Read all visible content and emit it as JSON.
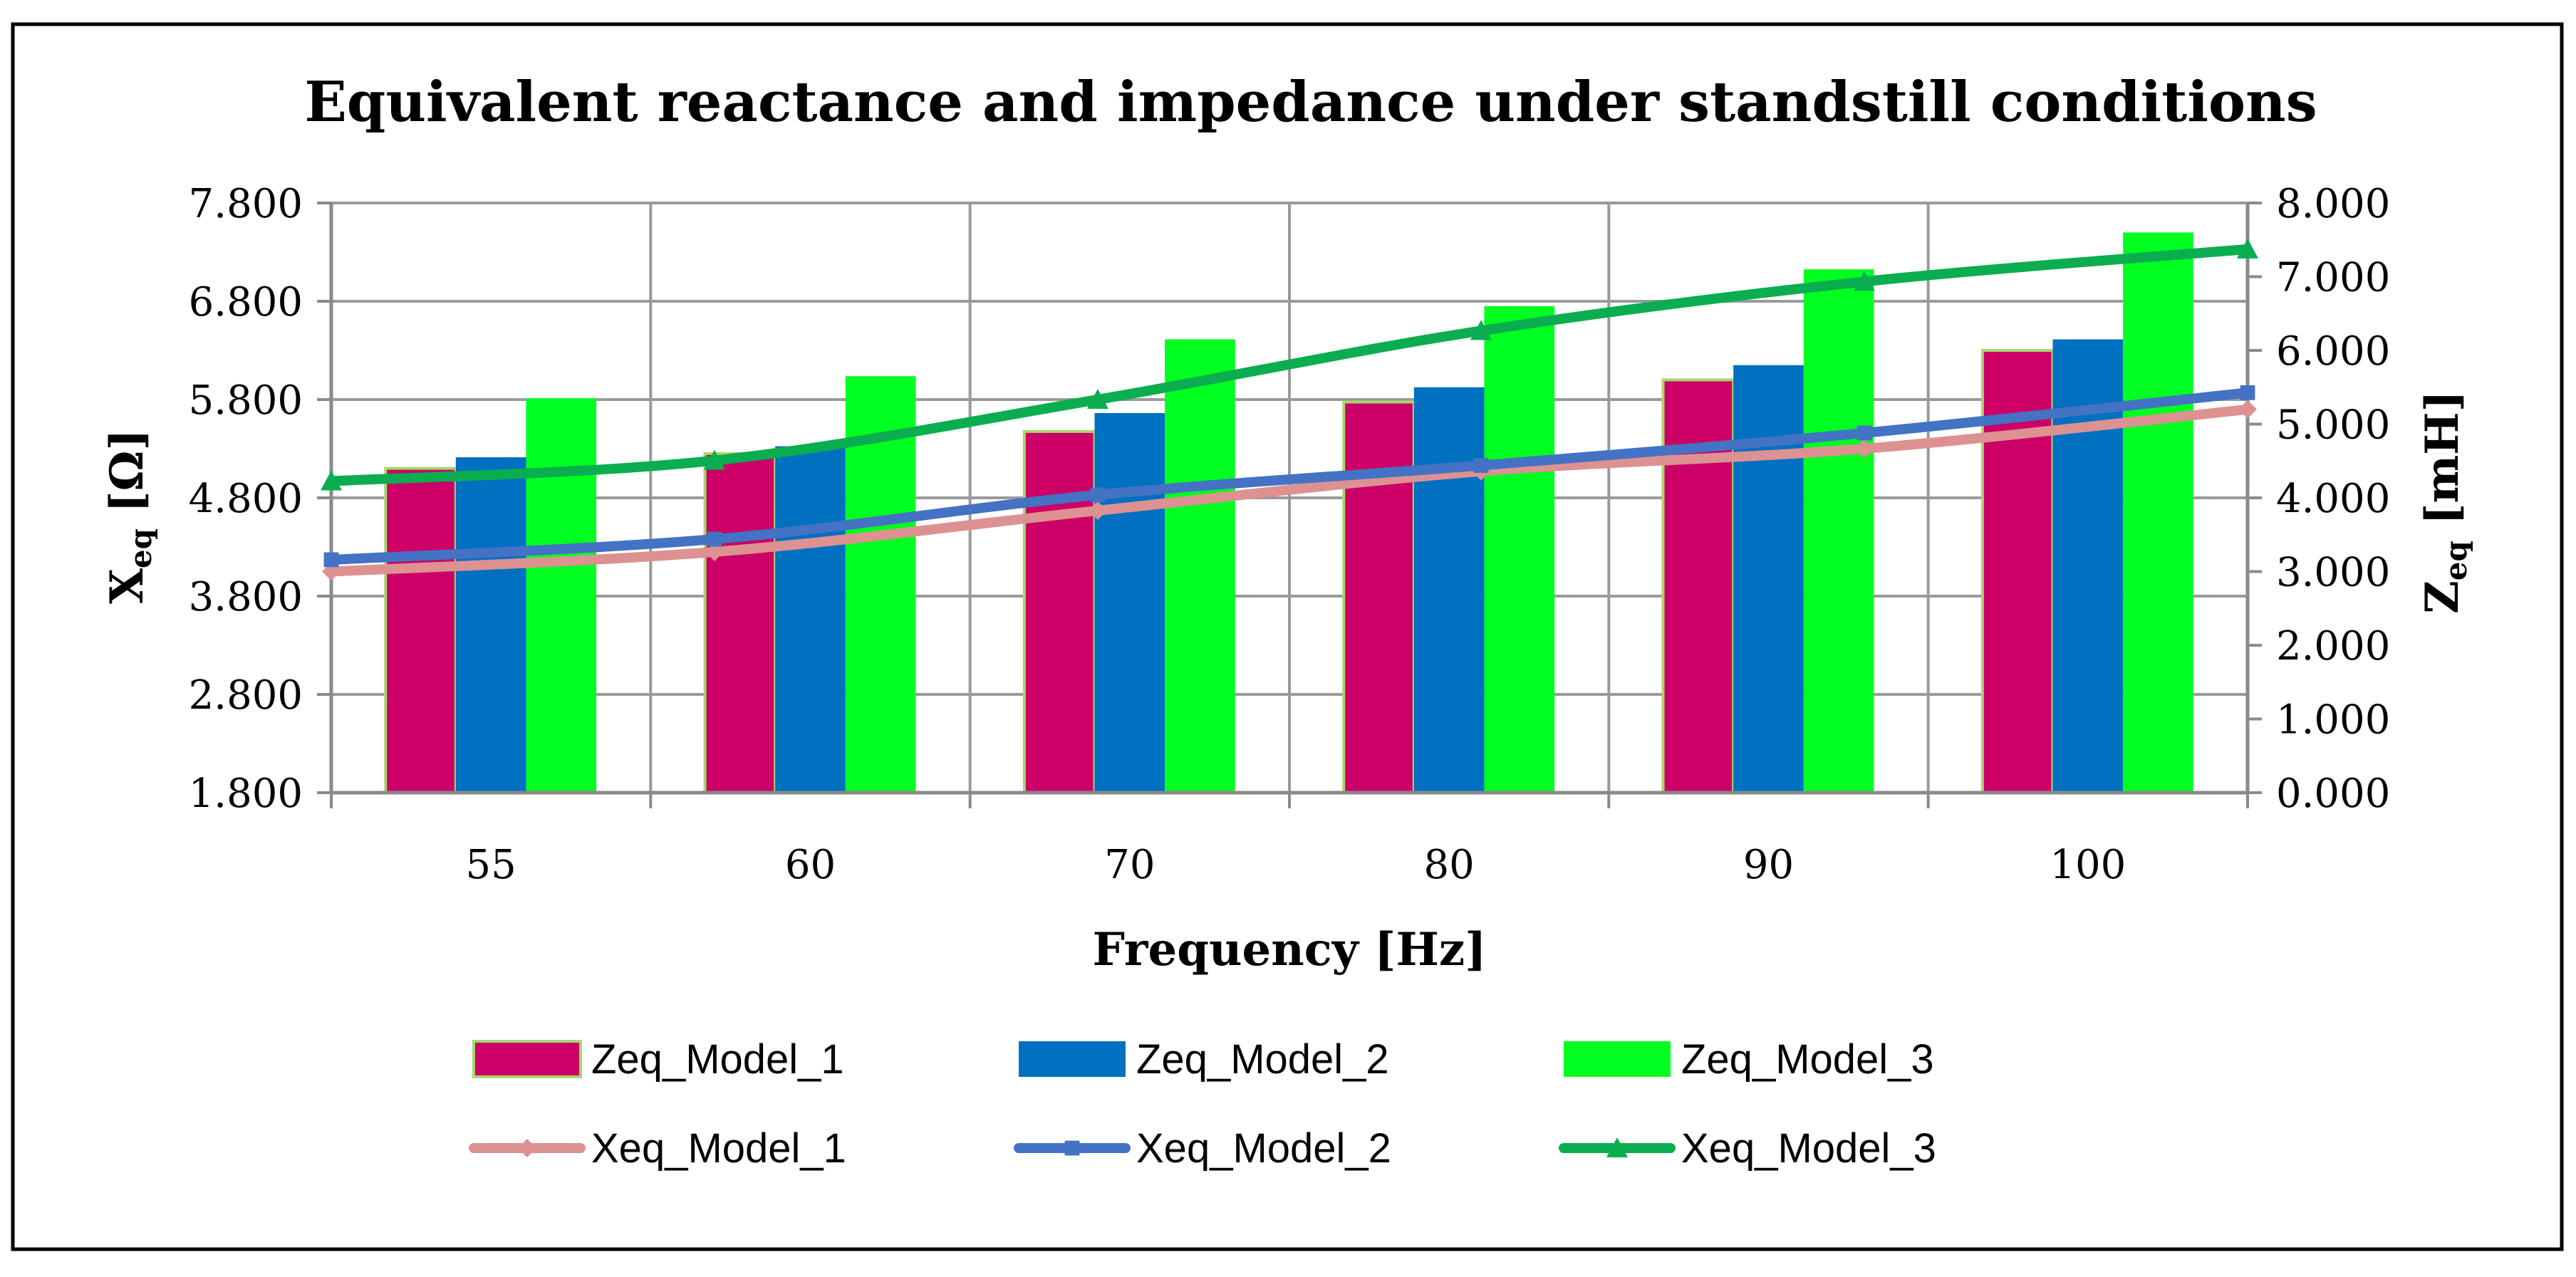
{
  "chart_data": {
    "type": "bar",
    "title": "Equivalent reactance and impedance under standstill conditions",
    "xlabel": "Frequency [Hz]",
    "ylabel_left": {
      "main": "X",
      "sub": "eq",
      "unit": " [Ω]"
    },
    "ylabel_right": {
      "main": "Z",
      "sub": "eq",
      "unit": " [mH]"
    },
    "categories": [
      "55",
      "60",
      "70",
      "80",
      "90",
      "100"
    ],
    "ylim_left": [
      1.8,
      7.8
    ],
    "yticks_left": [
      "1.800",
      "2.800",
      "3.800",
      "4.800",
      "5.800",
      "6.800",
      "7.800"
    ],
    "ylim_right": [
      0,
      8
    ],
    "yticks_right": [
      "0.000",
      "1.000",
      "2.000",
      "3.000",
      "4.000",
      "5.000",
      "6.000",
      "7.000",
      "8.000"
    ],
    "bar_series": [
      {
        "name": "Zeq_Model_1",
        "color": "#cc0066",
        "values": [
          4.4,
          4.6,
          4.9,
          5.3,
          5.6,
          6.0
        ]
      },
      {
        "name": "Zeq_Model_2",
        "color": "#0070c0",
        "values": [
          4.55,
          4.7,
          5.15,
          5.5,
          5.8,
          6.15
        ]
      },
      {
        "name": "Zeq_Model_3",
        "color": "#00ff21",
        "values": [
          5.35,
          5.65,
          6.15,
          6.6,
          7.1,
          7.6
        ]
      }
    ],
    "line_series": [
      {
        "name": "Xeq_Model_1",
        "color": "#dd9191",
        "marker": "diamond",
        "values": [
          4.05,
          4.25,
          4.67,
          5.07,
          5.3,
          5.7
        ]
      },
      {
        "name": "Xeq_Model_2",
        "color": "#4472c4",
        "marker": "square",
        "values": [
          4.17,
          4.38,
          4.83,
          5.13,
          5.46,
          5.87
        ]
      },
      {
        "name": "Xeq_Model_3",
        "color": "#0aad4f",
        "marker": "triangle",
        "values": [
          4.97,
          5.18,
          5.8,
          6.5,
          7.0,
          7.33
        ]
      }
    ],
    "grid": true,
    "legend_position": "bottom"
  }
}
